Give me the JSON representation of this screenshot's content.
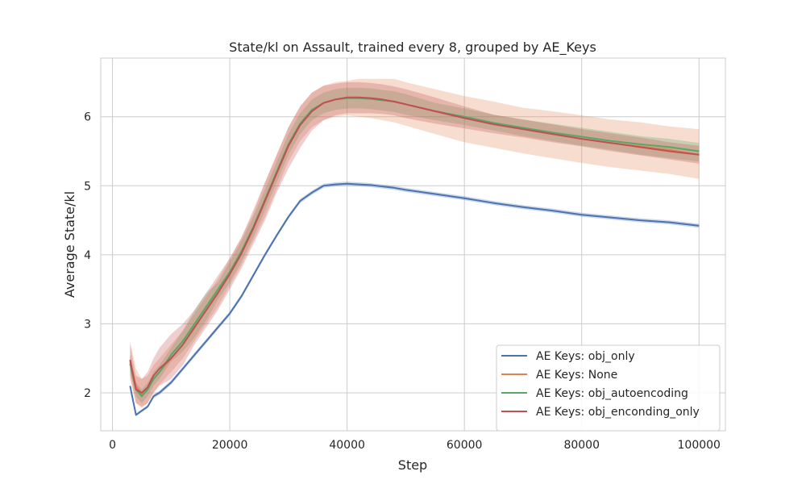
{
  "chart_data": {
    "type": "line",
    "title": "State/kl on Assault, trained every 8, grouped by AE_Keys",
    "xlabel": "Step",
    "ylabel": "Average State/kl",
    "xlim": [
      -2000,
      104500
    ],
    "ylim": [
      1.45,
      6.85
    ],
    "xticks": [
      0,
      20000,
      40000,
      60000,
      80000,
      100000
    ],
    "yticks": [
      2,
      3,
      4,
      5,
      6
    ],
    "grid": true,
    "legend_position": "lower right",
    "x": [
      3000,
      4000,
      5000,
      6000,
      7000,
      8000,
      10000,
      12000,
      14000,
      16000,
      18000,
      20000,
      22000,
      24000,
      26000,
      28000,
      30000,
      32000,
      34000,
      36000,
      38000,
      40000,
      42000,
      44000,
      46000,
      48000,
      50000,
      55000,
      60000,
      65000,
      70000,
      75000,
      80000,
      85000,
      90000,
      95000,
      100000
    ],
    "series": [
      {
        "name": "AE Keys: obj_only",
        "color": "#4c72b0",
        "values": [
          2.1,
          1.68,
          1.74,
          1.8,
          1.95,
          2.0,
          2.15,
          2.35,
          2.55,
          2.75,
          2.95,
          3.15,
          3.4,
          3.7,
          4.0,
          4.28,
          4.55,
          4.78,
          4.9,
          5.0,
          5.02,
          5.03,
          5.02,
          5.01,
          4.99,
          4.97,
          4.94,
          4.88,
          4.82,
          4.75,
          4.69,
          4.64,
          4.58,
          4.54,
          4.5,
          4.47,
          4.42
        ],
        "lower": [
          2.08,
          1.66,
          1.72,
          1.78,
          1.92,
          1.97,
          2.12,
          2.32,
          2.52,
          2.72,
          2.92,
          3.12,
          3.37,
          3.67,
          3.97,
          4.25,
          4.52,
          4.75,
          4.87,
          4.97,
          4.99,
          5.0,
          4.99,
          4.98,
          4.96,
          4.94,
          4.91,
          4.85,
          4.79,
          4.72,
          4.66,
          4.61,
          4.55,
          4.51,
          4.47,
          4.44,
          4.39
        ],
        "upper": [
          2.12,
          1.7,
          1.76,
          1.82,
          1.98,
          2.03,
          2.18,
          2.38,
          2.58,
          2.78,
          2.98,
          3.18,
          3.43,
          3.73,
          4.03,
          4.31,
          4.58,
          4.81,
          4.93,
          5.03,
          5.05,
          5.06,
          5.05,
          5.04,
          5.02,
          5.0,
          4.97,
          4.91,
          4.85,
          4.78,
          4.72,
          4.67,
          4.61,
          4.57,
          4.53,
          4.5,
          4.45
        ]
      },
      {
        "name": "AE Keys: None",
        "color": "#dd8452",
        "values": [
          2.45,
          2.1,
          1.98,
          2.05,
          2.2,
          2.3,
          2.5,
          2.7,
          2.95,
          3.2,
          3.45,
          3.75,
          4.05,
          4.4,
          4.8,
          5.2,
          5.6,
          5.9,
          6.1,
          6.2,
          6.25,
          6.27,
          6.27,
          6.26,
          6.24,
          6.22,
          6.18,
          6.08,
          5.98,
          5.9,
          5.82,
          5.75,
          5.68,
          5.62,
          5.57,
          5.52,
          5.45
        ],
        "lower": [
          2.2,
          1.85,
          1.78,
          1.85,
          2.0,
          2.12,
          2.3,
          2.5,
          2.75,
          3.0,
          3.25,
          3.55,
          3.85,
          4.2,
          4.55,
          4.95,
          5.35,
          5.65,
          5.85,
          5.95,
          6.0,
          6.02,
          6.0,
          5.98,
          5.95,
          5.92,
          5.87,
          5.75,
          5.63,
          5.55,
          5.47,
          5.4,
          5.33,
          5.27,
          5.22,
          5.17,
          5.1
        ],
        "upper": [
          2.75,
          2.35,
          2.2,
          2.25,
          2.4,
          2.5,
          2.7,
          2.9,
          3.15,
          3.4,
          3.65,
          3.95,
          4.25,
          4.6,
          5.05,
          5.45,
          5.85,
          6.15,
          6.35,
          6.45,
          6.5,
          6.52,
          6.55,
          6.55,
          6.55,
          6.55,
          6.5,
          6.4,
          6.3,
          6.22,
          6.13,
          6.08,
          6.02,
          5.96,
          5.92,
          5.86,
          5.82
        ]
      },
      {
        "name": "AE Keys: obj_autoencoding",
        "color": "#55a868",
        "values": [
          2.42,
          2.05,
          1.95,
          2.05,
          2.2,
          2.3,
          2.55,
          2.75,
          3.0,
          3.25,
          3.5,
          3.75,
          4.05,
          4.4,
          4.8,
          5.2,
          5.6,
          5.9,
          6.1,
          6.2,
          6.25,
          6.27,
          6.27,
          6.26,
          6.24,
          6.22,
          6.18,
          6.08,
          6.0,
          5.91,
          5.84,
          5.77,
          5.71,
          5.65,
          5.6,
          5.56,
          5.5
        ],
        "lower": [
          2.3,
          1.95,
          1.85,
          1.95,
          2.1,
          2.2,
          2.45,
          2.6,
          2.8,
          3.05,
          3.35,
          3.6,
          3.9,
          4.25,
          4.65,
          5.05,
          5.45,
          5.75,
          5.95,
          6.05,
          6.1,
          6.12,
          6.12,
          6.11,
          6.09,
          6.07,
          6.03,
          5.95,
          5.88,
          5.8,
          5.72,
          5.65,
          5.58,
          5.52,
          5.45,
          5.4,
          5.35
        ],
        "upper": [
          2.55,
          2.15,
          2.05,
          2.15,
          2.3,
          2.4,
          2.65,
          2.9,
          3.2,
          3.45,
          3.6,
          3.9,
          4.2,
          4.55,
          4.95,
          5.35,
          5.75,
          6.05,
          6.25,
          6.35,
          6.4,
          6.42,
          6.42,
          6.41,
          6.39,
          6.37,
          6.33,
          6.2,
          6.12,
          6.03,
          5.96,
          5.9,
          5.84,
          5.78,
          5.72,
          5.68,
          5.62
        ]
      },
      {
        "name": "AE Keys: obj_enconding_only",
        "color": "#c44e52",
        "values": [
          2.48,
          2.05,
          2.0,
          2.08,
          2.25,
          2.35,
          2.5,
          2.7,
          2.95,
          3.2,
          3.45,
          3.72,
          4.02,
          4.38,
          4.78,
          5.18,
          5.58,
          5.88,
          6.08,
          6.2,
          6.25,
          6.28,
          6.28,
          6.27,
          6.25,
          6.22,
          6.18,
          6.08,
          5.98,
          5.89,
          5.82,
          5.75,
          5.68,
          5.62,
          5.56,
          5.5,
          5.45
        ],
        "lower": [
          2.25,
          1.85,
          1.8,
          1.85,
          2.0,
          2.1,
          2.2,
          2.4,
          2.7,
          2.95,
          3.2,
          3.5,
          3.8,
          4.15,
          4.5,
          4.9,
          5.25,
          5.55,
          5.8,
          5.95,
          6.02,
          6.05,
          6.05,
          6.05,
          6.04,
          6.02,
          5.98,
          5.9,
          5.83,
          5.76,
          5.7,
          5.63,
          5.57,
          5.5,
          5.44,
          5.38,
          5.32
        ],
        "upper": [
          2.7,
          2.25,
          2.2,
          2.3,
          2.5,
          2.65,
          2.85,
          3.0,
          3.2,
          3.45,
          3.7,
          3.95,
          4.25,
          4.65,
          5.05,
          5.45,
          5.85,
          6.15,
          6.35,
          6.45,
          6.48,
          6.5,
          6.5,
          6.49,
          6.47,
          6.44,
          6.4,
          6.28,
          6.15,
          6.03,
          5.96,
          5.89,
          5.82,
          5.76,
          5.7,
          5.63,
          5.58
        ]
      }
    ]
  }
}
